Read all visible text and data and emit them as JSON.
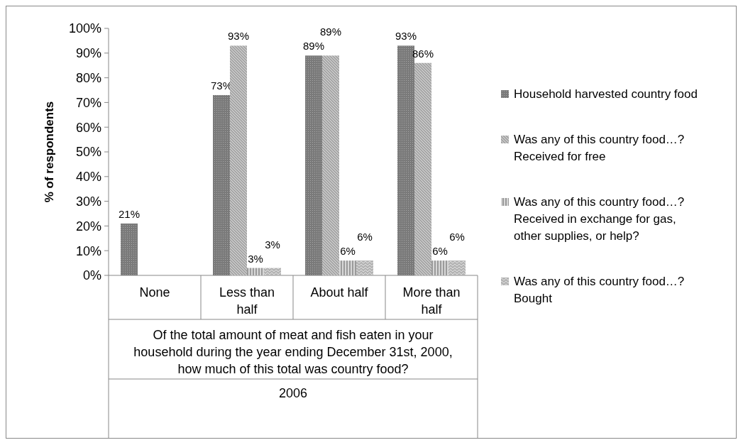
{
  "chart_data": {
    "type": "bar",
    "categories": [
      "None",
      "Less than half",
      "About half",
      "More than half"
    ],
    "xlabel": "Of the total amount of meat and fish eaten in your household during the year ending December 31st, 2000, how much of this total was country food?",
    "ylabel": "% of respondents",
    "annotations": [
      "2006"
    ],
    "series": [
      {
        "name": "Household harvested country food",
        "color": "#7a7a7a",
        "values": [
          21,
          73,
          89,
          93
        ],
        "value_labels": [
          "21%",
          "73%",
          "89%",
          "93%"
        ]
      },
      {
        "name": "Was any of this country food…? Received for free",
        "color": "#a8a8a8",
        "values": [
          null,
          93,
          89,
          86
        ],
        "value_labels": [
          null,
          "93%",
          "89%",
          "86%"
        ]
      },
      {
        "name": "Was any of this country food…? Received in exchange for gas, other supplies, or help?",
        "color": "#9a9a9a",
        "values": [
          null,
          3,
          6,
          6
        ],
        "value_labels": [
          null,
          "3%",
          "6%",
          "6%"
        ]
      },
      {
        "name": "Was any of this country food…? Bought",
        "color": "#b4b4b4",
        "values": [
          null,
          3,
          6,
          6
        ],
        "value_labels": [
          null,
          "3%",
          "6%",
          "6%"
        ]
      }
    ],
    "ylim": [
      0,
      100
    ],
    "yticks": [
      {
        "value": 0,
        "label": "0%"
      },
      {
        "value": 10,
        "label": "10%"
      },
      {
        "value": 20,
        "label": "20%"
      },
      {
        "value": 30,
        "label": "30%"
      },
      {
        "value": 40,
        "label": "40%"
      },
      {
        "value": 50,
        "label": "50%"
      },
      {
        "value": 60,
        "label": "60%"
      },
      {
        "value": 70,
        "label": "70%"
      },
      {
        "value": 80,
        "label": "80%"
      },
      {
        "value": 90,
        "label": "90%"
      },
      {
        "value": 100,
        "label": "100%"
      }
    ],
    "legend": "right",
    "grid": false
  }
}
